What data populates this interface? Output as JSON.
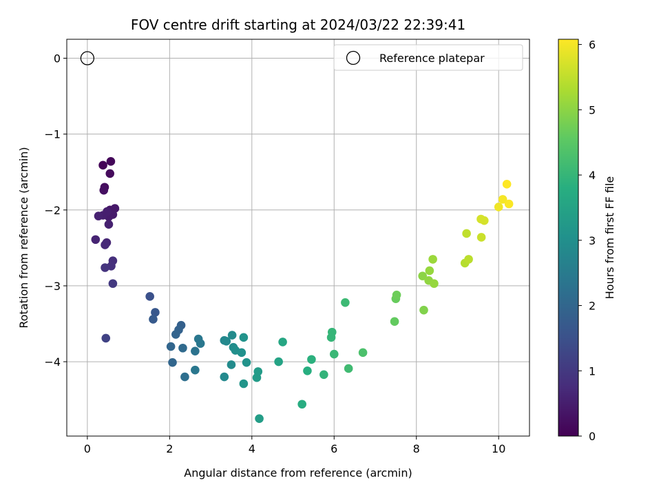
{
  "chart_data": {
    "type": "scatter",
    "title": "FOV centre drift starting at 2024/03/22 22:39:41",
    "xlabel": "Angular distance from reference (arcmin)",
    "ylabel": "Rotation from reference (arcmin)",
    "xlim": [
      -0.5,
      10.75
    ],
    "ylim": [
      -4.98,
      0.25
    ],
    "xticks": [
      "0",
      "2",
      "4",
      "6",
      "8",
      "10"
    ],
    "yticks": [
      "0",
      "−1",
      "−2",
      "−3",
      "−4"
    ],
    "grid": true,
    "legend": {
      "placement": "top-right",
      "entries": [
        "Reference platepar"
      ]
    },
    "reference_point": {
      "x": 0,
      "y": 0
    },
    "colorbar": {
      "label": "Hours from first FF file",
      "range": [
        0,
        6.08
      ],
      "ticks": [
        "0",
        "1",
        "2",
        "3",
        "4",
        "5",
        "6"
      ],
      "colormap": "viridis"
    },
    "points": [
      {
        "x": 0.38,
        "y": -1.41,
        "h": 0.05
      },
      {
        "x": 0.57,
        "y": -1.36,
        "h": 0.1
      },
      {
        "x": 0.55,
        "y": -1.52,
        "h": 0.15
      },
      {
        "x": 0.42,
        "y": -1.7,
        "h": 0.2
      },
      {
        "x": 0.4,
        "y": -1.74,
        "h": 0.25
      },
      {
        "x": 0.55,
        "y": -2.0,
        "h": 0.35
      },
      {
        "x": 0.67,
        "y": -1.98,
        "h": 0.4
      },
      {
        "x": 0.62,
        "y": -2.06,
        "h": 0.45
      },
      {
        "x": 0.52,
        "y": -2.09,
        "h": 0.45
      },
      {
        "x": 0.48,
        "y": -2.02,
        "h": 0.5
      },
      {
        "x": 0.38,
        "y": -2.07,
        "h": 0.5
      },
      {
        "x": 0.27,
        "y": -2.08,
        "h": 0.55
      },
      {
        "x": 0.52,
        "y": -2.19,
        "h": 0.55
      },
      {
        "x": 0.2,
        "y": -2.39,
        "h": 0.6
      },
      {
        "x": 0.47,
        "y": -2.43,
        "h": 0.65
      },
      {
        "x": 0.43,
        "y": -2.46,
        "h": 0.7
      },
      {
        "x": 0.62,
        "y": -2.67,
        "h": 0.8
      },
      {
        "x": 0.58,
        "y": -2.74,
        "h": 0.85
      },
      {
        "x": 0.43,
        "y": -2.76,
        "h": 0.9
      },
      {
        "x": 0.62,
        "y": -2.97,
        "h": 1.0
      },
      {
        "x": 0.45,
        "y": -3.69,
        "h": 1.2
      },
      {
        "x": 1.52,
        "y": -3.14,
        "h": 1.5
      },
      {
        "x": 1.65,
        "y": -3.35,
        "h": 1.65
      },
      {
        "x": 1.6,
        "y": -3.44,
        "h": 1.7
      },
      {
        "x": 2.28,
        "y": -3.52,
        "h": 1.85
      },
      {
        "x": 2.22,
        "y": -3.58,
        "h": 1.9
      },
      {
        "x": 2.15,
        "y": -3.64,
        "h": 1.95
      },
      {
        "x": 2.03,
        "y": -3.8,
        "h": 2.0
      },
      {
        "x": 2.32,
        "y": -3.82,
        "h": 2.1
      },
      {
        "x": 2.07,
        "y": -4.01,
        "h": 2.0
      },
      {
        "x": 2.37,
        "y": -4.2,
        "h": 2.2
      },
      {
        "x": 2.62,
        "y": -3.86,
        "h": 2.3
      },
      {
        "x": 2.7,
        "y": -3.7,
        "h": 2.4
      },
      {
        "x": 2.75,
        "y": -3.76,
        "h": 2.4
      },
      {
        "x": 2.62,
        "y": -4.11,
        "h": 2.4
      },
      {
        "x": 3.33,
        "y": -3.72,
        "h": 2.8
      },
      {
        "x": 3.38,
        "y": -3.73,
        "h": 2.85
      },
      {
        "x": 3.52,
        "y": -3.65,
        "h": 2.9
      },
      {
        "x": 3.55,
        "y": -3.81,
        "h": 2.95
      },
      {
        "x": 3.6,
        "y": -3.85,
        "h": 3.0
      },
      {
        "x": 3.75,
        "y": -3.88,
        "h": 3.05
      },
      {
        "x": 3.5,
        "y": -4.04,
        "h": 2.9
      },
      {
        "x": 3.33,
        "y": -4.2,
        "h": 2.85
      },
      {
        "x": 3.8,
        "y": -3.68,
        "h": 3.1
      },
      {
        "x": 3.87,
        "y": -4.01,
        "h": 3.1
      },
      {
        "x": 3.8,
        "y": -4.29,
        "h": 3.15
      },
      {
        "x": 4.12,
        "y": -4.21,
        "h": 3.3
      },
      {
        "x": 4.15,
        "y": -4.13,
        "h": 3.3
      },
      {
        "x": 4.18,
        "y": -4.75,
        "h": 3.35
      },
      {
        "x": 4.65,
        "y": -4.0,
        "h": 3.5
      },
      {
        "x": 4.75,
        "y": -3.74,
        "h": 3.6
      },
      {
        "x": 5.35,
        "y": -4.12,
        "h": 3.8
      },
      {
        "x": 5.45,
        "y": -3.97,
        "h": 3.85
      },
      {
        "x": 5.22,
        "y": -4.56,
        "h": 3.75
      },
      {
        "x": 5.75,
        "y": -4.17,
        "h": 3.95
      },
      {
        "x": 5.95,
        "y": -3.61,
        "h": 4.0
      },
      {
        "x": 5.93,
        "y": -3.68,
        "h": 4.0
      },
      {
        "x": 6.0,
        "y": -3.9,
        "h": 4.05
      },
      {
        "x": 6.27,
        "y": -3.22,
        "h": 4.1
      },
      {
        "x": 6.35,
        "y": -4.09,
        "h": 4.15
      },
      {
        "x": 6.7,
        "y": -3.88,
        "h": 4.3
      },
      {
        "x": 7.47,
        "y": -3.47,
        "h": 4.6
      },
      {
        "x": 7.5,
        "y": -3.17,
        "h": 4.65
      },
      {
        "x": 7.52,
        "y": -3.12,
        "h": 4.7
      },
      {
        "x": 8.18,
        "y": -3.32,
        "h": 4.9
      },
      {
        "x": 8.15,
        "y": -2.87,
        "h": 5.0
      },
      {
        "x": 8.3,
        "y": -2.93,
        "h": 5.05
      },
      {
        "x": 8.43,
        "y": -2.97,
        "h": 5.1
      },
      {
        "x": 8.32,
        "y": -2.8,
        "h": 5.1
      },
      {
        "x": 8.4,
        "y": -2.65,
        "h": 5.15
      },
      {
        "x": 9.18,
        "y": -2.7,
        "h": 5.4
      },
      {
        "x": 9.27,
        "y": -2.65,
        "h": 5.45
      },
      {
        "x": 9.22,
        "y": -2.31,
        "h": 5.5
      },
      {
        "x": 9.58,
        "y": -2.36,
        "h": 5.6
      },
      {
        "x": 9.57,
        "y": -2.12,
        "h": 5.7
      },
      {
        "x": 9.65,
        "y": -2.14,
        "h": 5.7
      },
      {
        "x": 10.0,
        "y": -1.96,
        "h": 5.95
      },
      {
        "x": 10.1,
        "y": -1.86,
        "h": 6.0
      },
      {
        "x": 10.25,
        "y": -1.92,
        "h": 6.05
      },
      {
        "x": 10.2,
        "y": -1.66,
        "h": 6.08
      }
    ]
  }
}
